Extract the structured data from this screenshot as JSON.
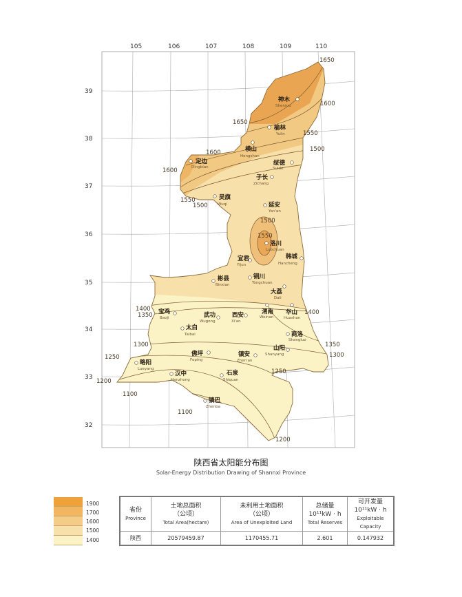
{
  "title": {
    "cn": "陕西省太阳能分布图",
    "en": "Solar-Energy Distribution Drawing of Shannxi Province"
  },
  "longitude_ticks": [
    "105",
    "106",
    "107",
    "108",
    "109",
    "110"
  ],
  "latitude_ticks": [
    "39",
    "38",
    "37",
    "36",
    "35",
    "34",
    "33",
    "32"
  ],
  "colors": {
    "band_1900": "#f0a23a",
    "band_1700": "#f2b560",
    "band_1600": "#f4cc88",
    "band_1500": "#f7e0aa",
    "band_1400": "#fbf3c6",
    "contour_line": "#7a5a30",
    "grid": "#9a9a9a"
  },
  "contour_labels": [
    "1650",
    "1600",
    "1650",
    "1550",
    "1500",
    "1600",
    "1600",
    "1550",
    "1500",
    "1500",
    "1550",
    "1400",
    "1350",
    "1400",
    "1300",
    "1350",
    "1300",
    "1250",
    "1250",
    "1200",
    "1100",
    "1100",
    "1200"
  ],
  "cities": [
    {
      "cn": "神木",
      "en": "Shenmu"
    },
    {
      "cn": "榆林",
      "en": "Yulin"
    },
    {
      "cn": "横山",
      "en": "Hengshan"
    },
    {
      "cn": "绥德",
      "en": "Suide"
    },
    {
      "cn": "定边",
      "en": "Dingbian"
    },
    {
      "cn": "子长",
      "en": "Zichang"
    },
    {
      "cn": "吴旗",
      "en": "Wuqi"
    },
    {
      "cn": "延安",
      "en": "Yan'an"
    },
    {
      "cn": "洛川",
      "en": "Luochuan"
    },
    {
      "cn": "宜君",
      "en": "Yijun"
    },
    {
      "cn": "韩城",
      "en": "Hancheng"
    },
    {
      "cn": "彬县",
      "en": "Binxian"
    },
    {
      "cn": "铜川",
      "en": "Tongchuan"
    },
    {
      "cn": "大荔",
      "en": "Dali"
    },
    {
      "cn": "渭南",
      "en": "Weinan"
    },
    {
      "cn": "华山",
      "en": "Huashan"
    },
    {
      "cn": "宝鸡",
      "en": "Baoji"
    },
    {
      "cn": "武功",
      "en": "Wugong"
    },
    {
      "cn": "西安",
      "en": "Xi'an"
    },
    {
      "cn": "太白",
      "en": "Taibai"
    },
    {
      "cn": "商洛",
      "en": "Shangluo"
    },
    {
      "cn": "山阳",
      "en": "Shanyang"
    },
    {
      "cn": "佛坪",
      "en": "Foping"
    },
    {
      "cn": "镇安",
      "en": "Zhen'an"
    },
    {
      "cn": "略阳",
      "en": "Lueyang"
    },
    {
      "cn": "汉中",
      "en": "Hanzhong"
    },
    {
      "cn": "石泉",
      "en": "Shiquan"
    },
    {
      "cn": "镇巴",
      "en": "Zhenba"
    }
  ],
  "legend": {
    "labels": [
      "1900",
      "1700",
      "1600",
      "1500",
      "1400"
    ]
  },
  "table": {
    "headers": [
      {
        "cn": "省份",
        "unit": "",
        "en": "Province"
      },
      {
        "cn": "土地总面积",
        "unit": "（公顷）",
        "en": "Total Area(hectare)"
      },
      {
        "cn": "未利用土地面积",
        "unit": "（公顷）",
        "en": "Area of Unexploited Land"
      },
      {
        "cn": "总储量",
        "unit": "10¹¹kW · h",
        "en": "Total Reserves"
      },
      {
        "cn": "可开发量",
        "unit": "10¹¹kW · h",
        "en": "Exploitable Capacity"
      }
    ],
    "row": [
      "陕西",
      "20579459.87",
      "1170455.71",
      "2.601",
      "0.147932"
    ]
  }
}
